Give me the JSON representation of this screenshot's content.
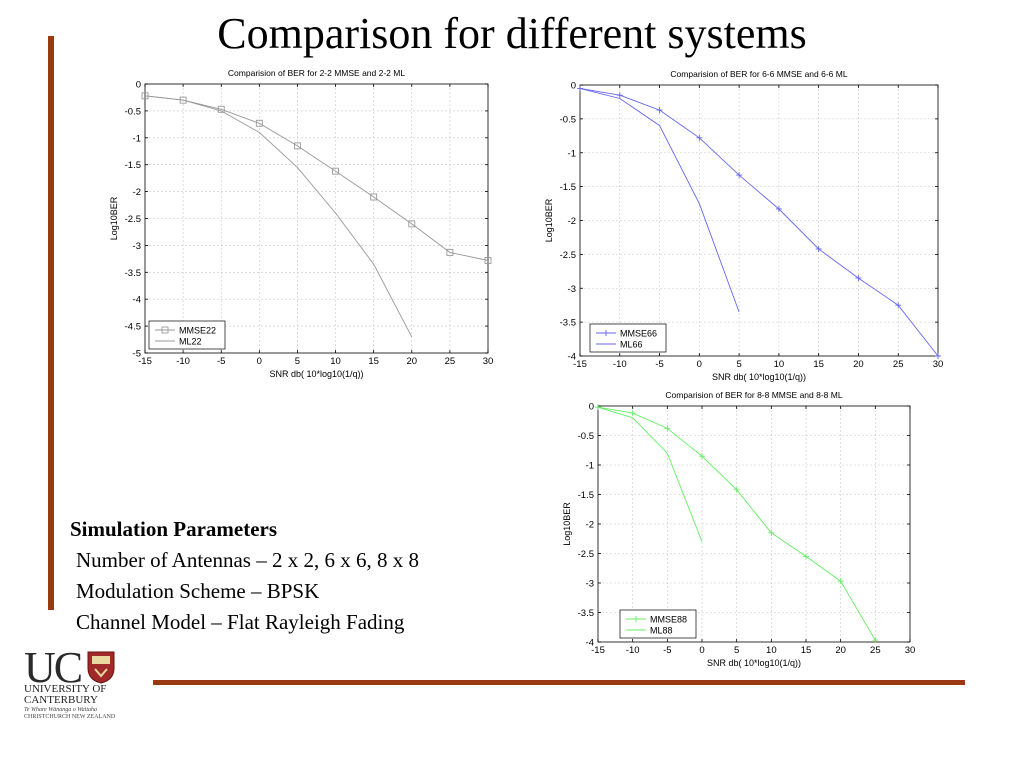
{
  "slide": {
    "title": "Comparison for different systems",
    "params": {
      "heading": "Simulation Parameters",
      "lines": [
        "Number of Antennas – 2 x 2, 6 x 6, 8 x 8",
        "Modulation Scheme – BPSK",
        "Channel Model – Flat Rayleigh Fading"
      ]
    },
    "logo": {
      "text_main": "UC",
      "text_uni": "UNIVERSITY OF",
      "text_cant": "CANTERBURY",
      "text_sub1": "Te Whare Wānanga o Waitaha",
      "text_sub2": "CHRISTCHURCH NEW ZEALAND"
    },
    "colors": {
      "accent": "#9a3a12"
    }
  },
  "chart_data": [
    {
      "type": "line",
      "title": "Comparision of BER for  2-2 MMSE and 2-2 ML",
      "xlabel": "SNR db( 10*log10(1/q))",
      "ylabel": "Log10BER",
      "xlim": [
        -15,
        30
      ],
      "ylim": [
        -5,
        0
      ],
      "xticks": [
        -15,
        -10,
        -5,
        0,
        5,
        10,
        15,
        20,
        25,
        30
      ],
      "yticks": [
        0,
        -0.5,
        -1,
        -1.5,
        -2,
        -2.5,
        -3,
        -3.5,
        -4,
        -4.5,
        -5
      ],
      "grid": true,
      "legend_position": "bottom-left",
      "color": "#999999",
      "series": [
        {
          "name": "MMSE22",
          "marker": "square",
          "x": [
            -15,
            -10,
            -5,
            0,
            5,
            10,
            15,
            20,
            25,
            30
          ],
          "y": [
            -0.22,
            -0.3,
            -0.47,
            -0.73,
            -1.15,
            -1.62,
            -2.1,
            -2.6,
            -3.13,
            -3.28
          ]
        },
        {
          "name": "ML22",
          "marker": "none",
          "x": [
            -15,
            -10,
            -5,
            0,
            5,
            10,
            15,
            20
          ],
          "y": [
            -0.22,
            -0.3,
            -0.5,
            -0.9,
            -1.55,
            -2.4,
            -3.35,
            -4.7
          ]
        }
      ]
    },
    {
      "type": "line",
      "title": "Comparision of BER for  6-6 MMSE and 6-6 ML",
      "xlabel": "SNR db( 10*log10(1/q))",
      "ylabel": "Log10BER",
      "xlim": [
        -15,
        30
      ],
      "ylim": [
        -4,
        0
      ],
      "xticks": [
        -15,
        -10,
        -5,
        0,
        5,
        10,
        15,
        20,
        25,
        30
      ],
      "yticks": [
        0,
        -0.5,
        -1,
        -1.5,
        -2,
        -2.5,
        -3,
        -3.5,
        -4
      ],
      "grid": true,
      "legend_position": "bottom-right",
      "color": "#6666ee",
      "series": [
        {
          "name": "MMSE66",
          "marker": "plus",
          "x": [
            -15,
            -10,
            -5,
            0,
            5,
            10,
            15,
            20,
            25,
            30
          ],
          "y": [
            -0.05,
            -0.15,
            -0.37,
            -0.78,
            -1.33,
            -1.83,
            -2.42,
            -2.85,
            -3.25,
            -4.0
          ]
        },
        {
          "name": "ML66",
          "marker": "none",
          "x": [
            -15,
            -10,
            -5,
            0,
            5
          ],
          "y": [
            -0.05,
            -0.2,
            -0.6,
            -1.75,
            -3.35
          ]
        }
      ]
    },
    {
      "type": "line",
      "title": "Comparision of BER for  8-8 MMSE and 8-8 ML",
      "xlabel": "SNR db( 10*log10(1/q))",
      "ylabel": "Log10BER",
      "xlim": [
        -15,
        30
      ],
      "ylim": [
        -4,
        0
      ],
      "xticks": [
        -15,
        -10,
        -5,
        0,
        5,
        10,
        15,
        20,
        25,
        30
      ],
      "yticks": [
        0,
        -0.5,
        -1,
        -1.5,
        -2,
        -2.5,
        -3,
        -3.5,
        -4
      ],
      "grid": true,
      "legend_position": "bottom-right",
      "color": "#66ee66",
      "series": [
        {
          "name": "MMSE88",
          "marker": "plus",
          "x": [
            -15,
            -10,
            -5,
            0,
            5,
            10,
            15,
            20,
            25
          ],
          "y": [
            -0.02,
            -0.12,
            -0.38,
            -0.85,
            -1.42,
            -2.15,
            -2.55,
            -2.97,
            -3.97
          ]
        },
        {
          "name": "ML88",
          "marker": "none",
          "x": [
            -15,
            -10,
            -5,
            0
          ],
          "y": [
            -0.02,
            -0.2,
            -0.8,
            -2.3
          ]
        }
      ]
    }
  ]
}
